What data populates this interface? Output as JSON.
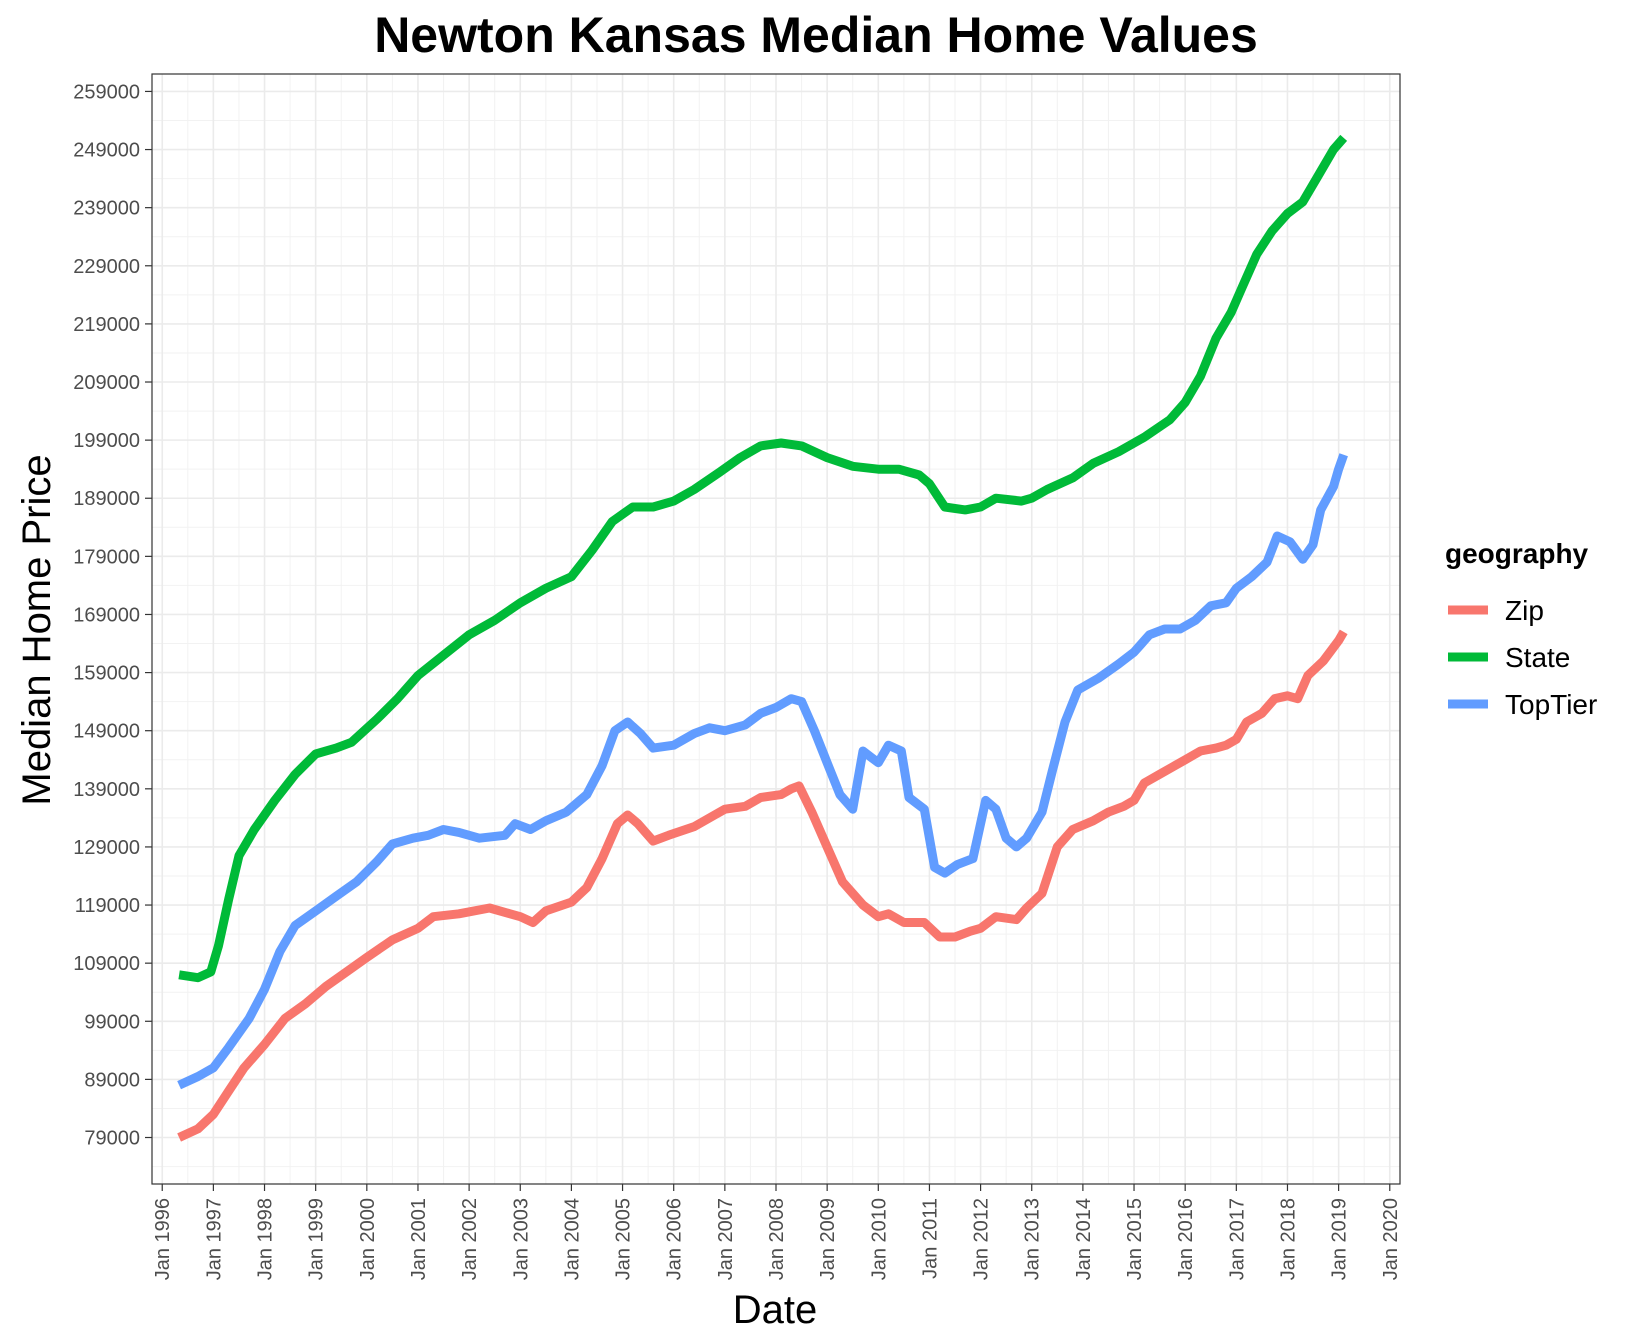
{
  "chart_data": {
    "type": "line",
    "title": "Newton Kansas Median Home Values",
    "xlabel": "Date",
    "ylabel": "Median Home Price",
    "xlim": [
      1995.8,
      2020.2
    ],
    "ylim": [
      71000,
      262000
    ],
    "x_ticks": [
      {
        "value": 1996,
        "label": "Jan 1996"
      },
      {
        "value": 1997,
        "label": "Jan 1997"
      },
      {
        "value": 1998,
        "label": "Jan 1998"
      },
      {
        "value": 1999,
        "label": "Jan 1999"
      },
      {
        "value": 2000,
        "label": "Jan 2000"
      },
      {
        "value": 2001,
        "label": "Jan 2001"
      },
      {
        "value": 2002,
        "label": "Jan 2002"
      },
      {
        "value": 2003,
        "label": "Jan 2003"
      },
      {
        "value": 2004,
        "label": "Jan 2004"
      },
      {
        "value": 2005,
        "label": "Jan 2005"
      },
      {
        "value": 2006,
        "label": "Jan 2006"
      },
      {
        "value": 2007,
        "label": "Jan 2007"
      },
      {
        "value": 2008,
        "label": "Jan 2008"
      },
      {
        "value": 2009,
        "label": "Jan 2009"
      },
      {
        "value": 2010,
        "label": "Jan 2010"
      },
      {
        "value": 2011,
        "label": "Jan 2011"
      },
      {
        "value": 2012,
        "label": "Jan 2012"
      },
      {
        "value": 2013,
        "label": "Jan 2013"
      },
      {
        "value": 2014,
        "label": "Jan 2014"
      },
      {
        "value": 2015,
        "label": "Jan 2015"
      },
      {
        "value": 2016,
        "label": "Jan 2016"
      },
      {
        "value": 2017,
        "label": "Jan 2017"
      },
      {
        "value": 2018,
        "label": "Jan 2018"
      },
      {
        "value": 2019,
        "label": "Jan 2019"
      },
      {
        "value": 2020,
        "label": "Jan 2020"
      }
    ],
    "y_ticks": [
      {
        "value": 79000,
        "label": "79000"
      },
      {
        "value": 89000,
        "label": "89000"
      },
      {
        "value": 99000,
        "label": "99000"
      },
      {
        "value": 109000,
        "label": "109000"
      },
      {
        "value": 119000,
        "label": "119000"
      },
      {
        "value": 129000,
        "label": "129000"
      },
      {
        "value": 139000,
        "label": "139000"
      },
      {
        "value": 149000,
        "label": "149000"
      },
      {
        "value": 159000,
        "label": "159000"
      },
      {
        "value": 169000,
        "label": "169000"
      },
      {
        "value": 179000,
        "label": "179000"
      },
      {
        "value": 189000,
        "label": "189000"
      },
      {
        "value": 199000,
        "label": "199000"
      },
      {
        "value": 209000,
        "label": "209000"
      },
      {
        "value": 219000,
        "label": "219000"
      },
      {
        "value": 229000,
        "label": "229000"
      },
      {
        "value": 239000,
        "label": "239000"
      },
      {
        "value": 249000,
        "label": "249000"
      },
      {
        "value": 259000,
        "label": "259000"
      }
    ],
    "grid": true,
    "legend": {
      "title": "geography",
      "position": "right"
    },
    "series": [
      {
        "name": "Zip",
        "color": "#F8766D",
        "points": [
          [
            1996.33,
            79000
          ],
          [
            1996.7,
            80500
          ],
          [
            1997.0,
            83000
          ],
          [
            1997.3,
            87000
          ],
          [
            1997.6,
            91000
          ],
          [
            1998.0,
            95000
          ],
          [
            1998.4,
            99500
          ],
          [
            1998.8,
            102000
          ],
          [
            1999.2,
            105000
          ],
          [
            1999.6,
            107500
          ],
          [
            2000.0,
            110000
          ],
          [
            2000.5,
            113000
          ],
          [
            2001.0,
            115000
          ],
          [
            2001.3,
            117000
          ],
          [
            2001.8,
            117500
          ],
          [
            2002.4,
            118500
          ],
          [
            2002.8,
            117500
          ],
          [
            2003.0,
            117000
          ],
          [
            2003.25,
            116000
          ],
          [
            2003.5,
            118000
          ],
          [
            2004.0,
            119500
          ],
          [
            2004.3,
            122000
          ],
          [
            2004.6,
            127000
          ],
          [
            2004.9,
            133000
          ],
          [
            2005.1,
            134500
          ],
          [
            2005.3,
            133000
          ],
          [
            2005.6,
            130000
          ],
          [
            2005.9,
            131000
          ],
          [
            2006.4,
            132500
          ],
          [
            2006.8,
            134500
          ],
          [
            2007.0,
            135500
          ],
          [
            2007.4,
            136000
          ],
          [
            2007.7,
            137500
          ],
          [
            2008.1,
            138000
          ],
          [
            2008.3,
            139000
          ],
          [
            2008.45,
            139500
          ],
          [
            2008.7,
            135000
          ],
          [
            2009.0,
            129000
          ],
          [
            2009.3,
            123000
          ],
          [
            2009.7,
            119000
          ],
          [
            2010.0,
            117000
          ],
          [
            2010.2,
            117500
          ],
          [
            2010.5,
            116000
          ],
          [
            2010.9,
            116000
          ],
          [
            2011.2,
            113500
          ],
          [
            2011.5,
            113500
          ],
          [
            2011.8,
            114500
          ],
          [
            2012.0,
            115000
          ],
          [
            2012.3,
            117000
          ],
          [
            2012.7,
            116500
          ],
          [
            2012.9,
            118500
          ],
          [
            2013.2,
            121000
          ],
          [
            2013.5,
            129000
          ],
          [
            2013.8,
            132000
          ],
          [
            2014.2,
            133500
          ],
          [
            2014.5,
            135000
          ],
          [
            2014.8,
            136000
          ],
          [
            2015.0,
            137000
          ],
          [
            2015.2,
            140000
          ],
          [
            2015.5,
            141500
          ],
          [
            2015.8,
            143000
          ],
          [
            2016.0,
            144000
          ],
          [
            2016.3,
            145500
          ],
          [
            2016.6,
            146000
          ],
          [
            2016.8,
            146500
          ],
          [
            2017.0,
            147500
          ],
          [
            2017.2,
            150500
          ],
          [
            2017.5,
            152000
          ],
          [
            2017.75,
            154500
          ],
          [
            2018.0,
            155000
          ],
          [
            2018.2,
            154500
          ],
          [
            2018.4,
            158500
          ],
          [
            2018.7,
            161000
          ],
          [
            2019.0,
            164500
          ],
          [
            2019.1,
            166000
          ]
        ]
      },
      {
        "name": "State",
        "color": "#00BA38",
        "points": [
          [
            1996.33,
            107000
          ],
          [
            1996.7,
            106500
          ],
          [
            1996.95,
            107500
          ],
          [
            1997.1,
            112000
          ],
          [
            1997.3,
            120000
          ],
          [
            1997.5,
            127500
          ],
          [
            1997.8,
            132000
          ],
          [
            1998.2,
            137000
          ],
          [
            1998.6,
            141500
          ],
          [
            1999.0,
            145000
          ],
          [
            1999.4,
            146000
          ],
          [
            1999.7,
            147000
          ],
          [
            2000.2,
            151000
          ],
          [
            2000.6,
            154500
          ],
          [
            2001.0,
            158500
          ],
          [
            2001.5,
            162000
          ],
          [
            2002.0,
            165500
          ],
          [
            2002.5,
            168000
          ],
          [
            2003.0,
            171000
          ],
          [
            2003.5,
            173500
          ],
          [
            2004.0,
            175500
          ],
          [
            2004.4,
            180000
          ],
          [
            2004.8,
            185000
          ],
          [
            2005.2,
            187500
          ],
          [
            2005.6,
            187500
          ],
          [
            2006.0,
            188500
          ],
          [
            2006.4,
            190500
          ],
          [
            2006.9,
            193500
          ],
          [
            2007.3,
            196000
          ],
          [
            2007.7,
            198000
          ],
          [
            2008.1,
            198500
          ],
          [
            2008.5,
            198000
          ],
          [
            2009.0,
            196000
          ],
          [
            2009.5,
            194500
          ],
          [
            2010.0,
            194000
          ],
          [
            2010.4,
            194000
          ],
          [
            2010.8,
            193000
          ],
          [
            2011.0,
            191500
          ],
          [
            2011.3,
            187500
          ],
          [
            2011.7,
            187000
          ],
          [
            2012.0,
            187500
          ],
          [
            2012.3,
            189000
          ],
          [
            2012.8,
            188500
          ],
          [
            2013.0,
            189000
          ],
          [
            2013.3,
            190500
          ],
          [
            2013.8,
            192500
          ],
          [
            2014.2,
            195000
          ],
          [
            2014.7,
            197000
          ],
          [
            2015.2,
            199500
          ],
          [
            2015.7,
            202500
          ],
          [
            2016.0,
            205500
          ],
          [
            2016.3,
            210000
          ],
          [
            2016.6,
            216500
          ],
          [
            2016.9,
            221000
          ],
          [
            2017.1,
            225000
          ],
          [
            2017.4,
            231000
          ],
          [
            2017.7,
            235000
          ],
          [
            2018.0,
            238000
          ],
          [
            2018.3,
            240000
          ],
          [
            2018.6,
            244500
          ],
          [
            2018.9,
            249000
          ],
          [
            2019.1,
            251000
          ]
        ]
      },
      {
        "name": "TopTier",
        "color": "#619CFF",
        "points": [
          [
            1996.33,
            88000
          ],
          [
            1996.7,
            89500
          ],
          [
            1997.0,
            91000
          ],
          [
            1997.3,
            94500
          ],
          [
            1997.7,
            99500
          ],
          [
            1998.0,
            104500
          ],
          [
            1998.3,
            111000
          ],
          [
            1998.6,
            115500
          ],
          [
            1999.0,
            118000
          ],
          [
            1999.4,
            120500
          ],
          [
            1999.8,
            123000
          ],
          [
            2000.2,
            126500
          ],
          [
            2000.5,
            129500
          ],
          [
            2000.9,
            130500
          ],
          [
            2001.2,
            131000
          ],
          [
            2001.5,
            132000
          ],
          [
            2001.8,
            131500
          ],
          [
            2002.2,
            130500
          ],
          [
            2002.7,
            131000
          ],
          [
            2002.9,
            133000
          ],
          [
            2003.2,
            132000
          ],
          [
            2003.5,
            133500
          ],
          [
            2003.9,
            135000
          ],
          [
            2004.3,
            138000
          ],
          [
            2004.6,
            143000
          ],
          [
            2004.85,
            149000
          ],
          [
            2005.1,
            150500
          ],
          [
            2005.35,
            148500
          ],
          [
            2005.6,
            146000
          ],
          [
            2006.0,
            146500
          ],
          [
            2006.4,
            148500
          ],
          [
            2006.7,
            149500
          ],
          [
            2007.0,
            149000
          ],
          [
            2007.4,
            150000
          ],
          [
            2007.7,
            152000
          ],
          [
            2008.0,
            153000
          ],
          [
            2008.3,
            154500
          ],
          [
            2008.5,
            154000
          ],
          [
            2008.75,
            149000
          ],
          [
            2009.0,
            143500
          ],
          [
            2009.25,
            138000
          ],
          [
            2009.5,
            135500
          ],
          [
            2009.7,
            145500
          ],
          [
            2009.85,
            144500
          ],
          [
            2010.0,
            143500
          ],
          [
            2010.2,
            146500
          ],
          [
            2010.45,
            145500
          ],
          [
            2010.6,
            137500
          ],
          [
            2010.9,
            135500
          ],
          [
            2011.1,
            125500
          ],
          [
            2011.3,
            124500
          ],
          [
            2011.55,
            126000
          ],
          [
            2011.85,
            127000
          ],
          [
            2012.1,
            137000
          ],
          [
            2012.3,
            135500
          ],
          [
            2012.5,
            130500
          ],
          [
            2012.7,
            129000
          ],
          [
            2012.9,
            130500
          ],
          [
            2013.2,
            135000
          ],
          [
            2013.4,
            142000
          ],
          [
            2013.65,
            150500
          ],
          [
            2013.9,
            156000
          ],
          [
            2014.3,
            158000
          ],
          [
            2014.7,
            160500
          ],
          [
            2015.0,
            162500
          ],
          [
            2015.3,
            165500
          ],
          [
            2015.6,
            166500
          ],
          [
            2015.9,
            166500
          ],
          [
            2016.2,
            168000
          ],
          [
            2016.5,
            170500
          ],
          [
            2016.8,
            171000
          ],
          [
            2017.0,
            173500
          ],
          [
            2017.3,
            175500
          ],
          [
            2017.6,
            178000
          ],
          [
            2017.8,
            182500
          ],
          [
            2018.05,
            181500
          ],
          [
            2018.3,
            178500
          ],
          [
            2018.5,
            181000
          ],
          [
            2018.65,
            187000
          ],
          [
            2018.9,
            191000
          ],
          [
            2019.0,
            194000
          ],
          [
            2019.1,
            196500
          ]
        ]
      }
    ]
  }
}
